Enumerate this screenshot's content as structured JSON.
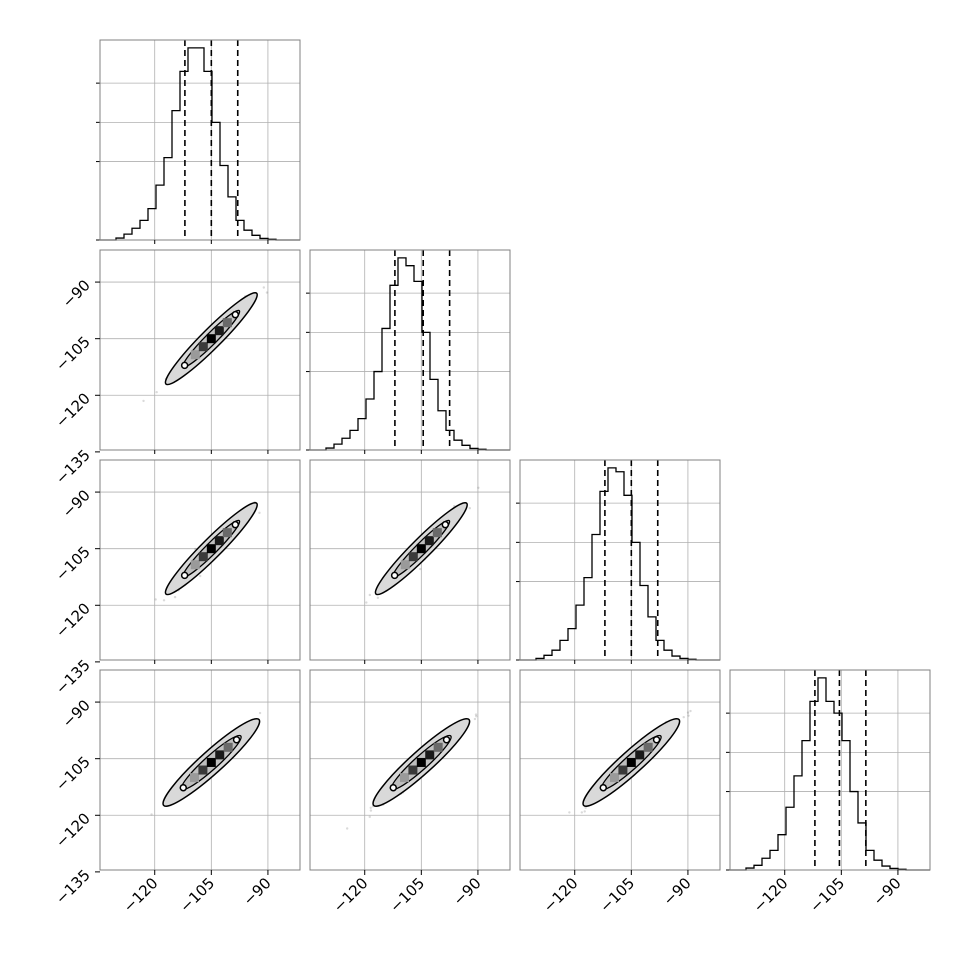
{
  "chart_data": {
    "type": "corner",
    "n_params": 4,
    "tick_labels": [
      "−135",
      "−120",
      "−105",
      "−90"
    ],
    "x_ticks": [
      -135,
      -120,
      -105,
      -90
    ],
    "y_ticks": [
      -135,
      -120,
      -105,
      -90
    ],
    "axis_range": [
      -134.5,
      -81.5
    ],
    "quantile_lines": [
      {
        "param": 1,
        "values": [
          -112.0,
          -105.0,
          -98.0
        ]
      },
      {
        "param": 2,
        "values": [
          -112.0,
          -104.5,
          -97.5
        ]
      },
      {
        "param": 3,
        "values": [
          -112.0,
          -105.0,
          -98.0
        ]
      },
      {
        "param": 4,
        "values": [
          -112.0,
          -105.5,
          -98.5
        ]
      }
    ],
    "histograms": [
      {
        "param": 1,
        "range": [
          -134.5,
          -81.5
        ],
        "bins": 25,
        "ylim": [
          0,
          0.051
        ],
        "density": [
          0.0,
          0.0,
          0.0005,
          0.0015,
          0.003,
          0.005,
          0.008,
          0.014,
          0.021,
          0.033,
          0.043,
          0.049,
          0.049,
          0.043,
          0.03,
          0.019,
          0.011,
          0.005,
          0.0025,
          0.0012,
          0.0004,
          0.0002,
          0.0,
          0.0,
          0.0
        ]
      },
      {
        "param": 2,
        "range": [
          -134.5,
          -81.5
        ],
        "bins": 25,
        "ylim": [
          0,
          0.051
        ],
        "density": [
          0.0,
          0.0,
          0.0005,
          0.0015,
          0.003,
          0.005,
          0.008,
          0.013,
          0.02,
          0.031,
          0.042,
          0.049,
          0.047,
          0.043,
          0.03,
          0.018,
          0.01,
          0.005,
          0.0025,
          0.0012,
          0.0004,
          0.0002,
          0.0,
          0.0,
          0.0
        ]
      },
      {
        "param": 3,
        "range": [
          -134.5,
          -81.5
        ],
        "bins": 25,
        "ylim": [
          0,
          0.051
        ],
        "density": [
          0.0,
          0.0,
          0.0004,
          0.0012,
          0.0025,
          0.005,
          0.008,
          0.014,
          0.021,
          0.032,
          0.043,
          0.049,
          0.048,
          0.042,
          0.03,
          0.019,
          0.011,
          0.005,
          0.0025,
          0.001,
          0.0004,
          0.0002,
          0.0,
          0.0,
          0.0
        ]
      },
      {
        "param": 4,
        "range": [
          -134.5,
          -81.5
        ],
        "bins": 25,
        "ylim": [
          0,
          0.051
        ],
        "density": [
          0.0,
          0.0,
          0.0005,
          0.0012,
          0.003,
          0.005,
          0.009,
          0.016,
          0.024,
          0.033,
          0.043,
          0.049,
          0.043,
          0.04,
          0.033,
          0.02,
          0.012,
          0.005,
          0.0025,
          0.001,
          0.0004,
          0.0002,
          0.0,
          0.0,
          0.0
        ]
      }
    ],
    "scatter_panels": [
      {
        "row": 2,
        "col": 1,
        "ellipse_angle_deg": 45,
        "inner_half": [
          10.5,
          1.5
        ],
        "outer_half": [
          17,
          2.6
        ],
        "mean": [
          -105,
          -105
        ]
      },
      {
        "row": 3,
        "col": 1,
        "ellipse_angle_deg": 45,
        "inner_half": [
          10.5,
          1.5
        ],
        "outer_half": [
          17,
          2.6
        ],
        "mean": [
          -105,
          -105
        ]
      },
      {
        "row": 3,
        "col": 2,
        "ellipse_angle_deg": 45,
        "inner_half": [
          10.5,
          1.5
        ],
        "outer_half": [
          17,
          2.6
        ],
        "mean": [
          -105,
          -105
        ]
      },
      {
        "row": 4,
        "col": 1,
        "ellipse_angle_deg": 42,
        "inner_half": [
          10.5,
          1.8
        ],
        "outer_half": [
          17,
          3.0
        ],
        "mean": [
          -105,
          -106
        ]
      },
      {
        "row": 4,
        "col": 2,
        "ellipse_angle_deg": 42,
        "inner_half": [
          10.5,
          1.8
        ],
        "outer_half": [
          17,
          3.0
        ],
        "mean": [
          -105,
          -106
        ]
      },
      {
        "row": 4,
        "col": 3,
        "ellipse_angle_deg": 42,
        "inner_half": [
          10.5,
          1.8
        ],
        "outer_half": [
          17,
          3.0
        ],
        "mean": [
          -105,
          -106
        ]
      }
    ],
    "grid": true,
    "colors": {
      "line": "#000000",
      "grid": "#b0b0b0",
      "frame": "#808080",
      "fill": "#d9d9d9",
      "points": "#555555"
    }
  }
}
